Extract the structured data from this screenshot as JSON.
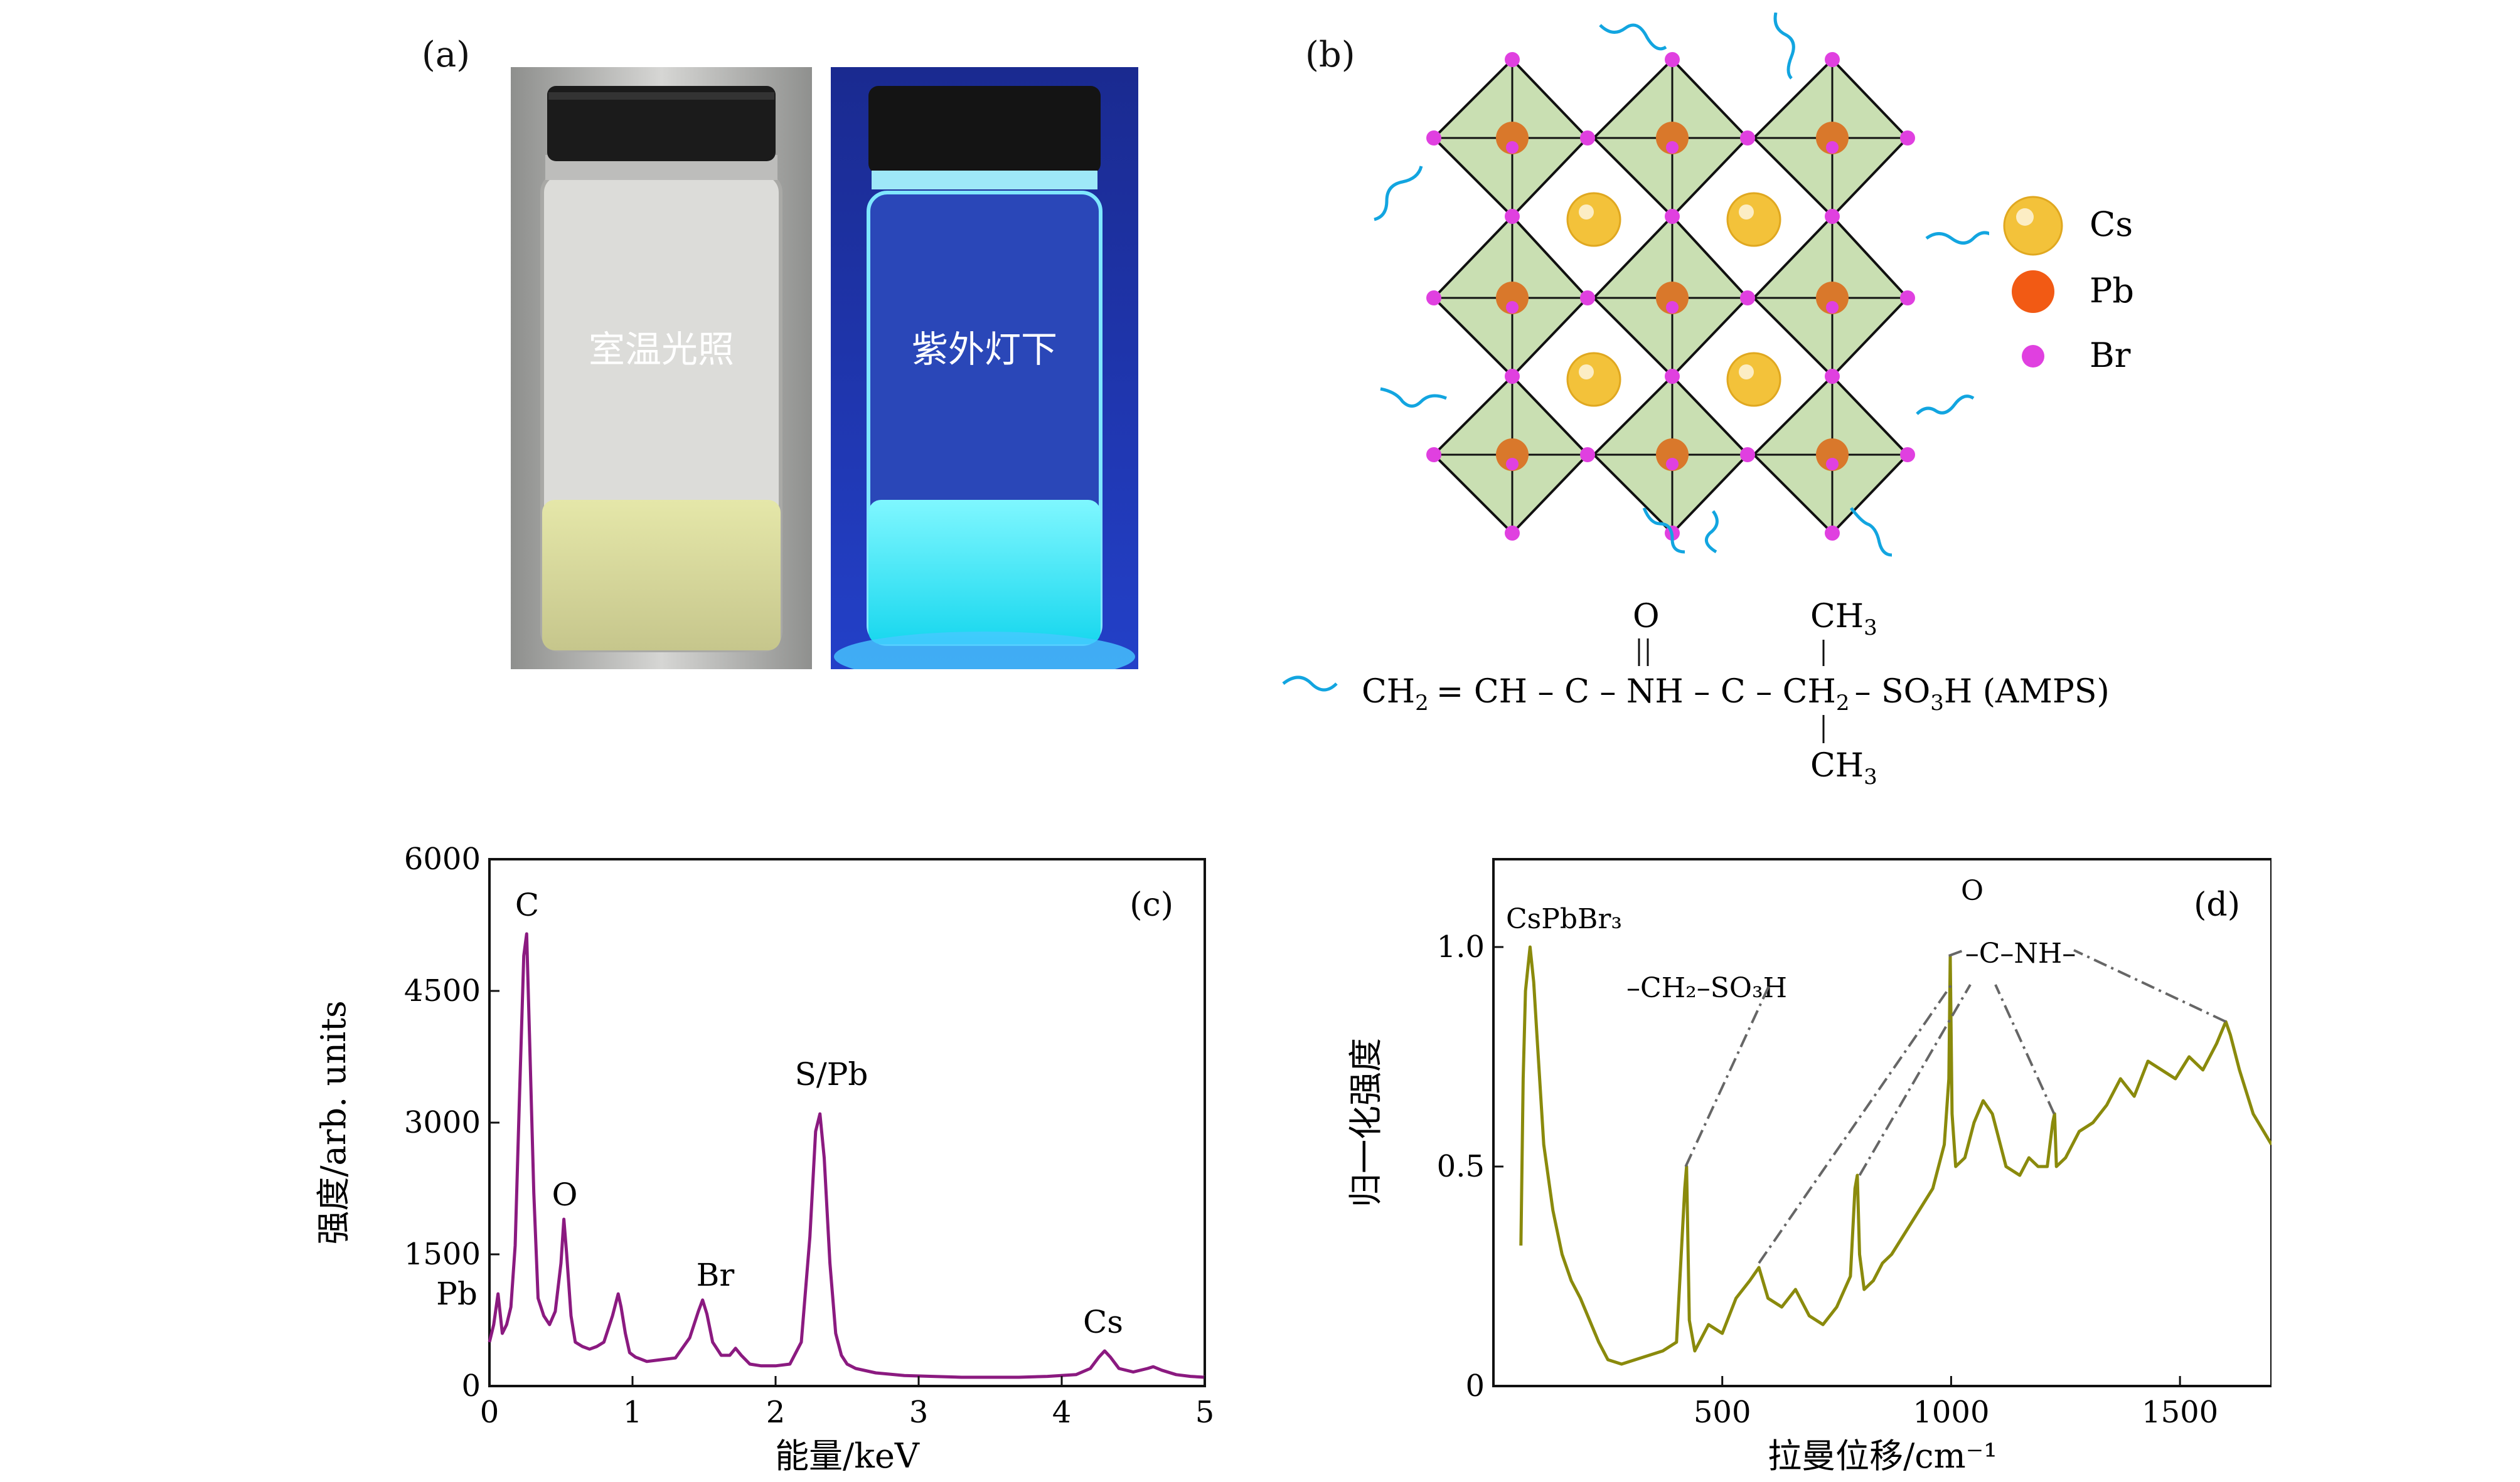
{
  "panels": {
    "a": {
      "label": "(a)",
      "vial_left_text": "室温光照",
      "vial_right_text": "紫外灯下"
    },
    "b": {
      "label": "(b)",
      "legend": {
        "cs": "Cs",
        "pb": "Pb",
        "br": "Br"
      },
      "formula": {
        "o": "O",
        "ch3_top": "CH",
        "ch3_bottom": "CH",
        "sub3": "3",
        "main_a": "CH",
        "sub2a": "2",
        "main_b": "= CH – C – NH – C – CH",
        "sub2b": "2",
        "main_c": "– SO",
        "sub3b": "3",
        "main_d": "H  (AMPS)"
      }
    },
    "c": {
      "label": "(c)"
    },
    "d": {
      "label": "(d)"
    }
  },
  "colors": {
    "green": "#c9dfb2",
    "pink": "#e040e0",
    "orange": "#d9782b",
    "gold": "#f3c23a",
    "purple": "#8b1a80",
    "olive": "#8a8a0c",
    "cyan": "#12a5e0"
  },
  "chart_data": [
    {
      "type": "line",
      "panel": "(c)",
      "xlabel": "能量/keV",
      "ylabel": "强度/arb. units",
      "xlim": [
        0,
        5
      ],
      "ylim": [
        0,
        6000
      ],
      "xticks": [
        "0",
        "1",
        "2",
        "3",
        "4",
        "5"
      ],
      "yticks": [
        "0",
        "1500",
        "3000",
        "4500",
        "6000"
      ],
      "annotations": [
        "C",
        "O",
        "Br",
        "S/Pb",
        "Cs",
        "Pb"
      ],
      "series": [
        {
          "x": [
            0.0,
            0.03,
            0.06,
            0.09,
            0.12,
            0.15,
            0.18,
            0.21,
            0.24,
            0.26,
            0.28,
            0.31,
            0.34,
            0.38,
            0.42,
            0.46,
            0.5,
            0.52,
            0.54,
            0.57,
            0.6,
            0.65,
            0.7,
            0.75,
            0.8,
            0.86,
            0.9,
            0.92,
            0.95,
            0.98,
            1.02,
            1.1,
            1.2,
            1.3,
            1.4,
            1.46,
            1.49,
            1.52,
            1.56,
            1.62,
            1.68,
            1.72,
            1.76,
            1.82,
            1.9,
            2.0,
            2.1,
            2.18,
            2.24,
            2.28,
            2.31,
            2.34,
            2.38,
            2.42,
            2.46,
            2.5,
            2.56,
            2.7,
            2.9,
            3.1,
            3.3,
            3.5,
            3.7,
            3.9,
            4.1,
            4.2,
            4.26,
            4.3,
            4.34,
            4.4,
            4.5,
            4.6,
            4.64,
            4.7,
            4.8,
            4.9,
            5.0
          ],
          "y": [
            500,
            700,
            1050,
            600,
            700,
            900,
            1600,
            3300,
            4900,
            5150,
            4000,
            2200,
            1000,
            800,
            700,
            850,
            1400,
            1900,
            1500,
            800,
            500,
            450,
            420,
            450,
            500,
            800,
            1050,
            900,
            600,
            380,
            330,
            280,
            300,
            320,
            550,
            850,
            980,
            820,
            500,
            350,
            350,
            430,
            350,
            250,
            230,
            230,
            250,
            500,
            1700,
            2900,
            3100,
            2600,
            1400,
            600,
            350,
            250,
            200,
            150,
            120,
            110,
            100,
            100,
            100,
            110,
            130,
            200,
            330,
            400,
            330,
            200,
            160,
            200,
            220,
            180,
            130,
            110,
            100
          ]
        }
      ]
    },
    {
      "type": "line",
      "panel": "(d)",
      "xlabel": "拉曼位移/cm⁻¹",
      "ylabel": "归一化强度",
      "xlim": [
        0,
        1700
      ],
      "ylim": [
        0,
        1.2
      ],
      "xticks": [
        "500",
        "1000",
        "1500"
      ],
      "yticks": [
        "0",
        "0.5",
        "1.0"
      ],
      "annotations": [
        "CsPbBr₃",
        "–CH₂–SO₃H",
        "O",
        "–C–NH–"
      ],
      "series": [
        {
          "x": [
            60,
            65,
            70,
            75,
            80,
            88,
            95,
            110,
            130,
            150,
            170,
            190,
            210,
            230,
            250,
            280,
            310,
            340,
            370,
            400,
            418,
            422,
            428,
            440,
            470,
            500,
            530,
            560,
            580,
            600,
            630,
            660,
            690,
            720,
            750,
            780,
            790,
            795,
            800,
            810,
            830,
            850,
            870,
            900,
            930,
            960,
            985,
            995,
            998,
            1002,
            1010,
            1030,
            1050,
            1070,
            1090,
            1100,
            1120,
            1150,
            1170,
            1190,
            1210,
            1222,
            1226,
            1230,
            1250,
            1280,
            1310,
            1340,
            1370,
            1400,
            1430,
            1460,
            1490,
            1520,
            1550,
            1580,
            1600,
            1610,
            1630,
            1660,
            1700
          ],
          "y": [
            0.32,
            0.7,
            0.9,
            0.95,
            1.0,
            0.92,
            0.8,
            0.55,
            0.4,
            0.3,
            0.24,
            0.2,
            0.15,
            0.1,
            0.06,
            0.05,
            0.06,
            0.07,
            0.08,
            0.1,
            0.45,
            0.5,
            0.15,
            0.08,
            0.14,
            0.12,
            0.2,
            0.24,
            0.27,
            0.2,
            0.18,
            0.22,
            0.16,
            0.14,
            0.18,
            0.25,
            0.45,
            0.48,
            0.3,
            0.22,
            0.24,
            0.28,
            0.3,
            0.35,
            0.4,
            0.45,
            0.55,
            0.7,
            0.98,
            0.62,
            0.5,
            0.52,
            0.6,
            0.65,
            0.62,
            0.58,
            0.5,
            0.48,
            0.52,
            0.5,
            0.5,
            0.6,
            0.62,
            0.5,
            0.52,
            0.58,
            0.6,
            0.64,
            0.7,
            0.66,
            0.74,
            0.72,
            0.7,
            0.75,
            0.72,
            0.78,
            0.83,
            0.8,
            0.72,
            0.62,
            0.55
          ]
        }
      ]
    }
  ]
}
